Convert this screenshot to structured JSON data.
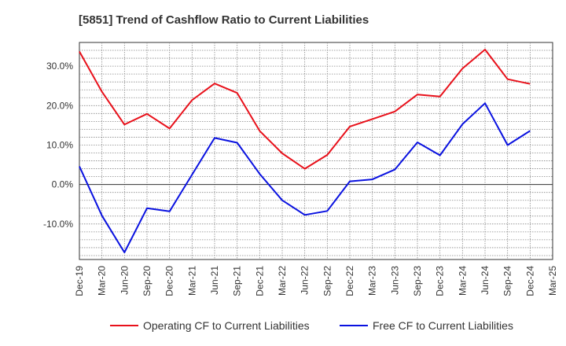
{
  "chart_data": {
    "type": "line",
    "title": "[5851]  Trend of Cashflow Ratio to Current Liabilities",
    "xlabel": "",
    "ylabel": "",
    "x": [
      "Dec-19",
      "Mar-20",
      "Jun-20",
      "Sep-20",
      "Dec-20",
      "Mar-21",
      "Jun-21",
      "Sep-21",
      "Dec-21",
      "Mar-22",
      "Jun-22",
      "Sep-22",
      "Dec-22",
      "Mar-23",
      "Jun-23",
      "Sep-23",
      "Dec-23",
      "Mar-24",
      "Jun-24",
      "Sep-24",
      "Dec-24",
      "Mar-25"
    ],
    "yticks": [
      -10,
      0,
      10,
      20,
      30
    ],
    "ytick_labels": [
      "-10.0%",
      "0.0%",
      "10.0%",
      "20.0%",
      "30.0%"
    ],
    "ylim": [
      -19,
      36
    ],
    "grid": true,
    "legend_position": "bottom",
    "series": [
      {
        "name": "Operating CF to Current Liabilities",
        "color": "#e8111b",
        "values": [
          33.7,
          23.5,
          15.2,
          17.9,
          14.2,
          21.4,
          25.6,
          23.2,
          13.6,
          7.9,
          4.0,
          7.5,
          14.7,
          16.6,
          18.5,
          22.8,
          22.3,
          29.4,
          34.2,
          26.7,
          25.5,
          null
        ]
      },
      {
        "name": "Free CF to Current Liabilities",
        "color": "#0a12e0",
        "values": [
          4.6,
          -7.9,
          -17.2,
          -6.0,
          -6.8,
          2.5,
          11.8,
          10.6,
          2.7,
          -4.0,
          -7.7,
          -6.7,
          0.8,
          1.3,
          3.8,
          10.7,
          7.4,
          15.3,
          20.6,
          10.0,
          13.6,
          null
        ]
      }
    ]
  }
}
